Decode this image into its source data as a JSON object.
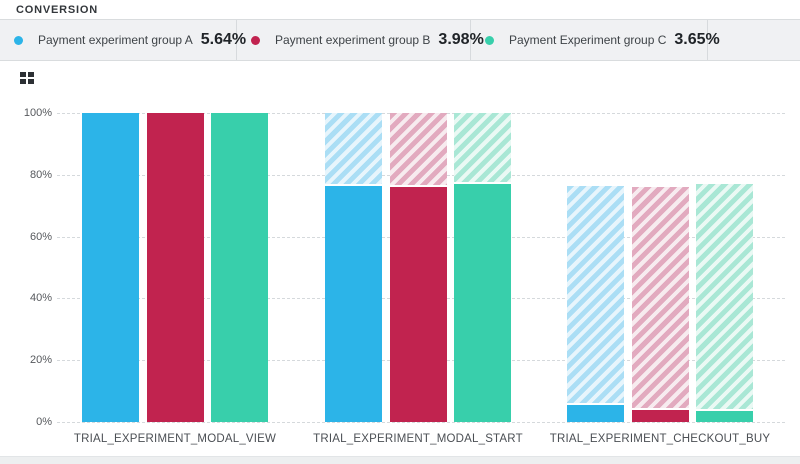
{
  "header": {
    "title": "CONVERSION"
  },
  "legend": [
    {
      "name": "Payment experiment group A",
      "value": "5.64%",
      "color": "#2cb4e8"
    },
    {
      "name": "Payment experiment group B",
      "value": "3.98%",
      "color": "#c1234f"
    },
    {
      "name": "Payment Experiment group C",
      "value": "3.65%",
      "color": "#38cfab"
    }
  ],
  "icons": {
    "layout_grid": "grid-icon"
  },
  "chart_data": {
    "type": "bar",
    "subtype": "grouped-funnel",
    "title": "CONVERSION",
    "categories": [
      "TRIAL_EXPERIMENT_MODAL_VIEW",
      "TRIAL_EXPERIMENT_MODAL_START",
      "TRIAL_EXPERIMENT_CHECKOUT_BUY"
    ],
    "series": [
      {
        "name": "Payment experiment group A",
        "color": "#2cb4e8",
        "hatch_stripe": "#abdef5",
        "hatch_bg": "#e7f5fc",
        "solid_pct": [
          100,
          76.4,
          5.64
        ],
        "hatch_top_pct": [
          null,
          100,
          76.4
        ],
        "overall_conversion": "5.64%"
      },
      {
        "name": "Payment experiment group B",
        "color": "#c1234f",
        "hatch_stripe": "#e2aabf",
        "hatch_bg": "#f7ebef",
        "solid_pct": [
          100,
          76.1,
          3.98
        ],
        "hatch_top_pct": [
          null,
          100,
          76.1
        ],
        "overall_conversion": "3.98%"
      },
      {
        "name": "Payment Experiment group C",
        "color": "#38cfab",
        "hatch_stripe": "#a9e7d5",
        "hatch_bg": "#eaf9f4",
        "solid_pct": [
          100,
          77.0,
          3.65
        ],
        "hatch_top_pct": [
          null,
          100,
          77.0
        ],
        "overall_conversion": "3.65%"
      }
    ],
    "yticks_pct": [
      0,
      20,
      40,
      60,
      80,
      100
    ],
    "ytick_labels": [
      "0%",
      "20%",
      "40%",
      "60%",
      "80%",
      "100%"
    ],
    "ylim": [
      0,
      100
    ],
    "grid": "dashed horizontal",
    "legend_position": "top"
  }
}
